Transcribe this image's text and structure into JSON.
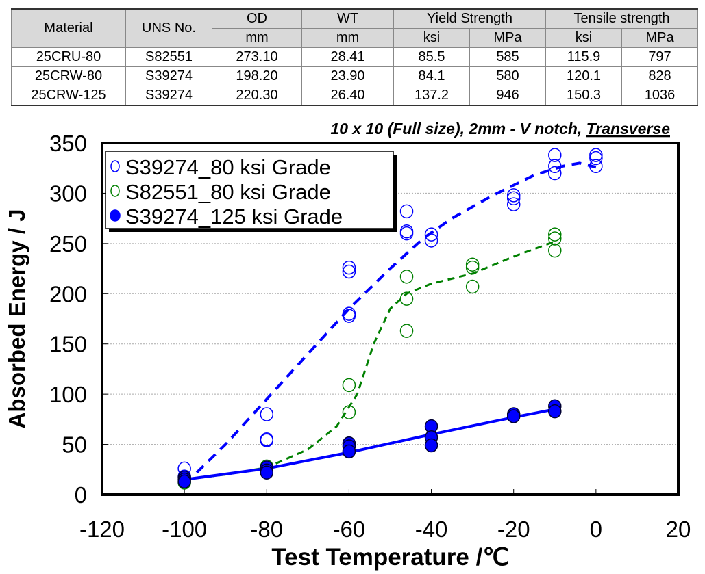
{
  "table": {
    "header_top": [
      "Material",
      "UNS No.",
      "OD",
      "WT",
      "Yield Strength",
      "Tensile strength"
    ],
    "header_units": [
      "mm",
      "mm",
      "ksi",
      "MPa",
      "ksi",
      "MPa"
    ],
    "rows": [
      [
        "25CRU-80",
        "S82551",
        "273.10",
        "28.41",
        "85.5",
        "585",
        "115.9",
        "797"
      ],
      [
        "25CRW-80",
        "S39274",
        "198.20",
        "23.90",
        "84.1",
        "580",
        "120.1",
        "828"
      ],
      [
        "25CRW-125",
        "S39274",
        "220.30",
        "26.40",
        "137.2",
        "946",
        "150.3",
        "1036"
      ]
    ]
  },
  "chart_data": {
    "type": "scatter",
    "title": "10 x 10 (Full size), 2mm - V notch, Transverse",
    "title_parts": [
      "10 x 10 (Full size), 2mm - V notch, ",
      "Transverse"
    ],
    "xlabel": "Test Temperature /℃",
    "ylabel": "Absorbed Energy / J",
    "xlim": [
      -120,
      20
    ],
    "ylim": [
      0,
      350
    ],
    "xticks": [
      -120,
      -100,
      -80,
      -60,
      -40,
      -20,
      0,
      20
    ],
    "yticks": [
      0,
      50,
      100,
      150,
      200,
      250,
      300,
      350
    ],
    "grid": "horizontal dotted",
    "legend": "top-left",
    "series": [
      {
        "name": "S39274_80 ksi Grade",
        "color": "#0000ff",
        "marker": "open-circle",
        "fit": "dashed",
        "points": [
          [
            -100,
            26
          ],
          [
            -100,
            18
          ],
          [
            -80,
            80
          ],
          [
            -80,
            55
          ],
          [
            -80,
            54
          ],
          [
            -60,
            226
          ],
          [
            -60,
            222
          ],
          [
            -60,
            180
          ],
          [
            -60,
            178
          ],
          [
            -46,
            282
          ],
          [
            -46,
            262
          ],
          [
            -46,
            260
          ],
          [
            -40,
            259
          ],
          [
            -40,
            253
          ],
          [
            -20,
            298
          ],
          [
            -20,
            295
          ],
          [
            -20,
            289
          ],
          [
            -10,
            338
          ],
          [
            -10,
            327
          ],
          [
            -10,
            320
          ],
          [
            0,
            338
          ],
          [
            0,
            335
          ],
          [
            0,
            327
          ]
        ],
        "fit_points": [
          [
            -97,
            22
          ],
          [
            -90,
            50
          ],
          [
            -80,
            95
          ],
          [
            -70,
            140
          ],
          [
            -60,
            185
          ],
          [
            -50,
            225
          ],
          [
            -42,
            255
          ],
          [
            -35,
            275
          ],
          [
            -25,
            298
          ],
          [
            -15,
            318
          ],
          [
            -8,
            327
          ],
          [
            -4,
            330
          ],
          [
            0,
            326
          ]
        ]
      },
      {
        "name": "S82551_80 ksi Grade",
        "color": "#008000",
        "marker": "open-circle",
        "fit": "dashed",
        "points": [
          [
            -100,
            12
          ],
          [
            -80,
            28
          ],
          [
            -80,
            24
          ],
          [
            -60,
            109
          ],
          [
            -60,
            82
          ],
          [
            -46,
            217
          ],
          [
            -46,
            195
          ],
          [
            -46,
            163
          ],
          [
            -30,
            229
          ],
          [
            -30,
            226
          ],
          [
            -30,
            207
          ],
          [
            -10,
            259
          ],
          [
            -10,
            255
          ],
          [
            -10,
            243
          ]
        ],
        "fit_points": [
          [
            -100,
            15
          ],
          [
            -90,
            20
          ],
          [
            -80,
            27
          ],
          [
            -70,
            45
          ],
          [
            -63,
            68
          ],
          [
            -58,
            100
          ],
          [
            -54,
            150
          ],
          [
            -50,
            185
          ],
          [
            -46,
            200
          ],
          [
            -40,
            210
          ],
          [
            -30,
            220
          ],
          [
            -20,
            237
          ],
          [
            -10,
            252
          ]
        ]
      },
      {
        "name": "S39274_125 ksi Grade",
        "color": "#0000ff",
        "marker": "filled-circle",
        "fit": "solid",
        "points": [
          [
            -100,
            17
          ],
          [
            -100,
            15
          ],
          [
            -100,
            13
          ],
          [
            -80,
            27
          ],
          [
            -80,
            24
          ],
          [
            -80,
            22
          ],
          [
            -60,
            51
          ],
          [
            -60,
            48
          ],
          [
            -60,
            43
          ],
          [
            -40,
            68
          ],
          [
            -40,
            57
          ],
          [
            -40,
            49
          ],
          [
            -20,
            80
          ],
          [
            -20,
            78
          ],
          [
            -10,
            88
          ],
          [
            -10,
            83
          ]
        ],
        "fit_points": [
          [
            -100,
            15
          ],
          [
            -80,
            26
          ],
          [
            -60,
            42
          ],
          [
            -40,
            60
          ],
          [
            -20,
            77
          ],
          [
            -10,
            85
          ]
        ]
      }
    ]
  }
}
